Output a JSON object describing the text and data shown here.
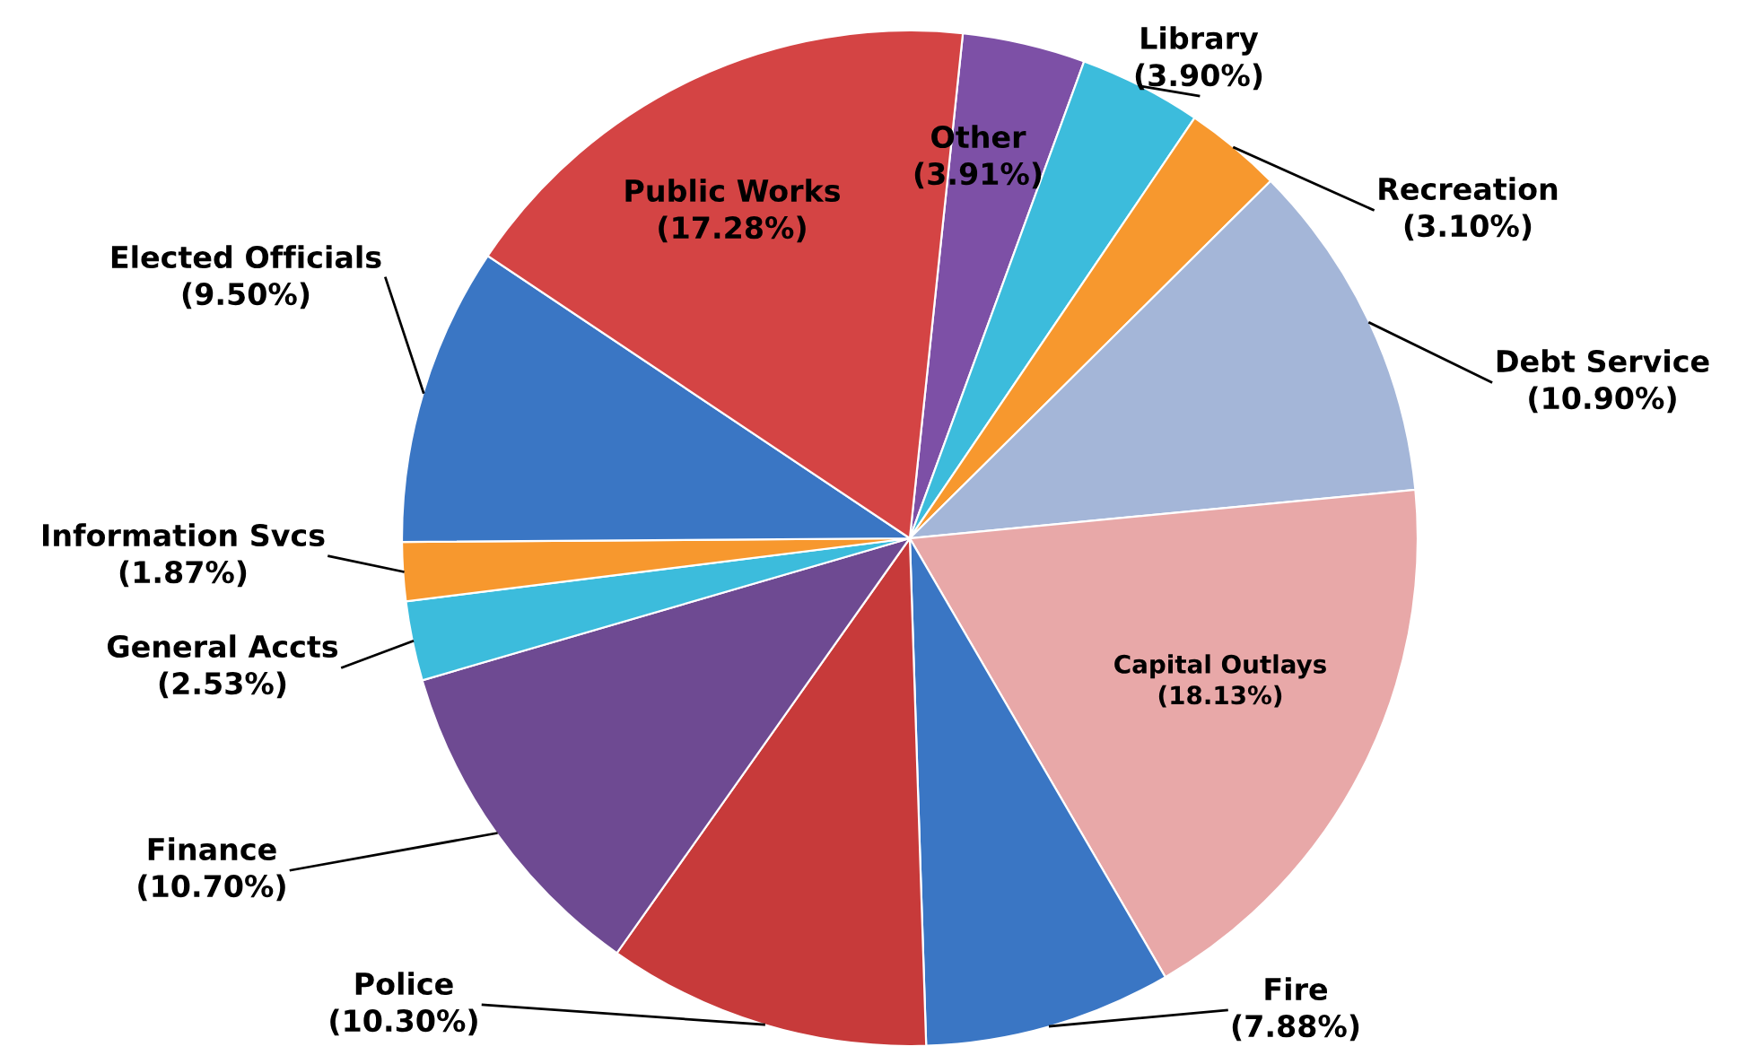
{
  "chart_data": {
    "type": "pie",
    "categories": [
      "Other",
      "Library",
      "Recreation",
      "Debt Service",
      "Capital Outlays",
      "Fire",
      "Police",
      "Finance",
      "General Accts",
      "Information Svcs",
      "Elected Officials",
      "Public Works"
    ],
    "values": [
      3.91,
      3.9,
      3.1,
      10.9,
      18.13,
      7.88,
      10.3,
      10.7,
      2.53,
      1.87,
      9.5,
      17.28
    ],
    "value_labels": [
      "(3.91%)",
      "(3.90%)",
      "(3.10%)",
      "(10.90%)",
      "(18.13%)",
      "(7.88%)",
      "(10.30%)",
      "(10.70%)",
      "(2.53%)",
      "(1.87%)",
      "(9.50%)",
      "(17.28%)"
    ],
    "colors": [
      "#7d50a6",
      "#3cbcdc",
      "#f7982e",
      "#a4b6d8",
      "#e8a8a8",
      "#3a76c4",
      "#c73a3a",
      "#6e4a92",
      "#3cbcdc",
      "#f7982e",
      "#3a76c4",
      "#d44444"
    ],
    "legend": false
  }
}
